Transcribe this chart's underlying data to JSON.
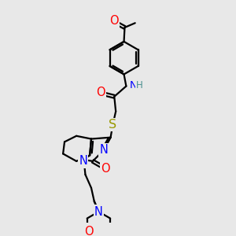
{
  "bg_color": "#e8e8e8",
  "bond_color": "#000000",
  "atom_colors": {
    "O": "#ff0000",
    "N": "#0000ff",
    "S": "#999900",
    "H": "#4a9090",
    "C": "#000000"
  },
  "line_width": 1.6,
  "font_size": 9.5,
  "fig_size": [
    3.0,
    3.0
  ],
  "dpi": 100
}
